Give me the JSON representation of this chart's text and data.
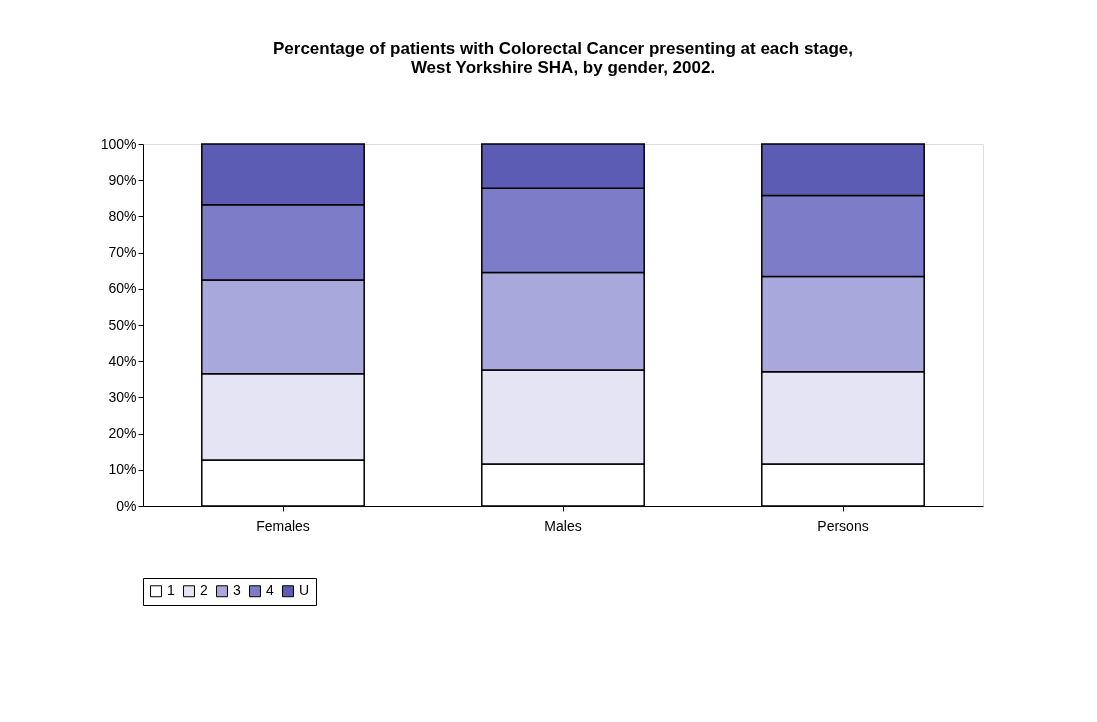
{
  "chart_data": {
    "type": "bar",
    "stacked": true,
    "title": [
      "Percentage of patients with Colorectal Cancer presenting at each stage,",
      "West Yorkshire SHA, by gender, 2002."
    ],
    "categories": [
      "Females",
      "Males",
      "Persons"
    ],
    "series": [
      {
        "name": "1",
        "color": "#ffffff",
        "values": [
          12.7,
          11.6,
          11.6
        ]
      },
      {
        "name": "2",
        "color": "#e4e4f4",
        "values": [
          23.8,
          26.0,
          25.5
        ]
      },
      {
        "name": "3",
        "color": "#a8a8dc",
        "values": [
          25.9,
          26.9,
          26.3
        ]
      },
      {
        "name": "4",
        "color": "#7c7cc8",
        "values": [
          20.8,
          23.3,
          22.4
        ]
      },
      {
        "name": "U",
        "color": "#5c5cb4",
        "values": [
          16.8,
          12.2,
          14.2
        ]
      }
    ],
    "ylim": [
      0,
      100
    ],
    "yticks": [
      {
        "value": 0,
        "label": "0%"
      },
      {
        "value": 10,
        "label": "10%"
      },
      {
        "value": 20,
        "label": "20%"
      },
      {
        "value": 30,
        "label": "30%"
      },
      {
        "value": 40,
        "label": "40%"
      },
      {
        "value": 50,
        "label": "50%"
      },
      {
        "value": 60,
        "label": "60%"
      },
      {
        "value": 70,
        "label": "70%"
      },
      {
        "value": 80,
        "label": "80%"
      },
      {
        "value": 90,
        "label": "90%"
      },
      {
        "value": 100,
        "label": "100%"
      }
    ],
    "grid": false,
    "legend": "bottom"
  }
}
